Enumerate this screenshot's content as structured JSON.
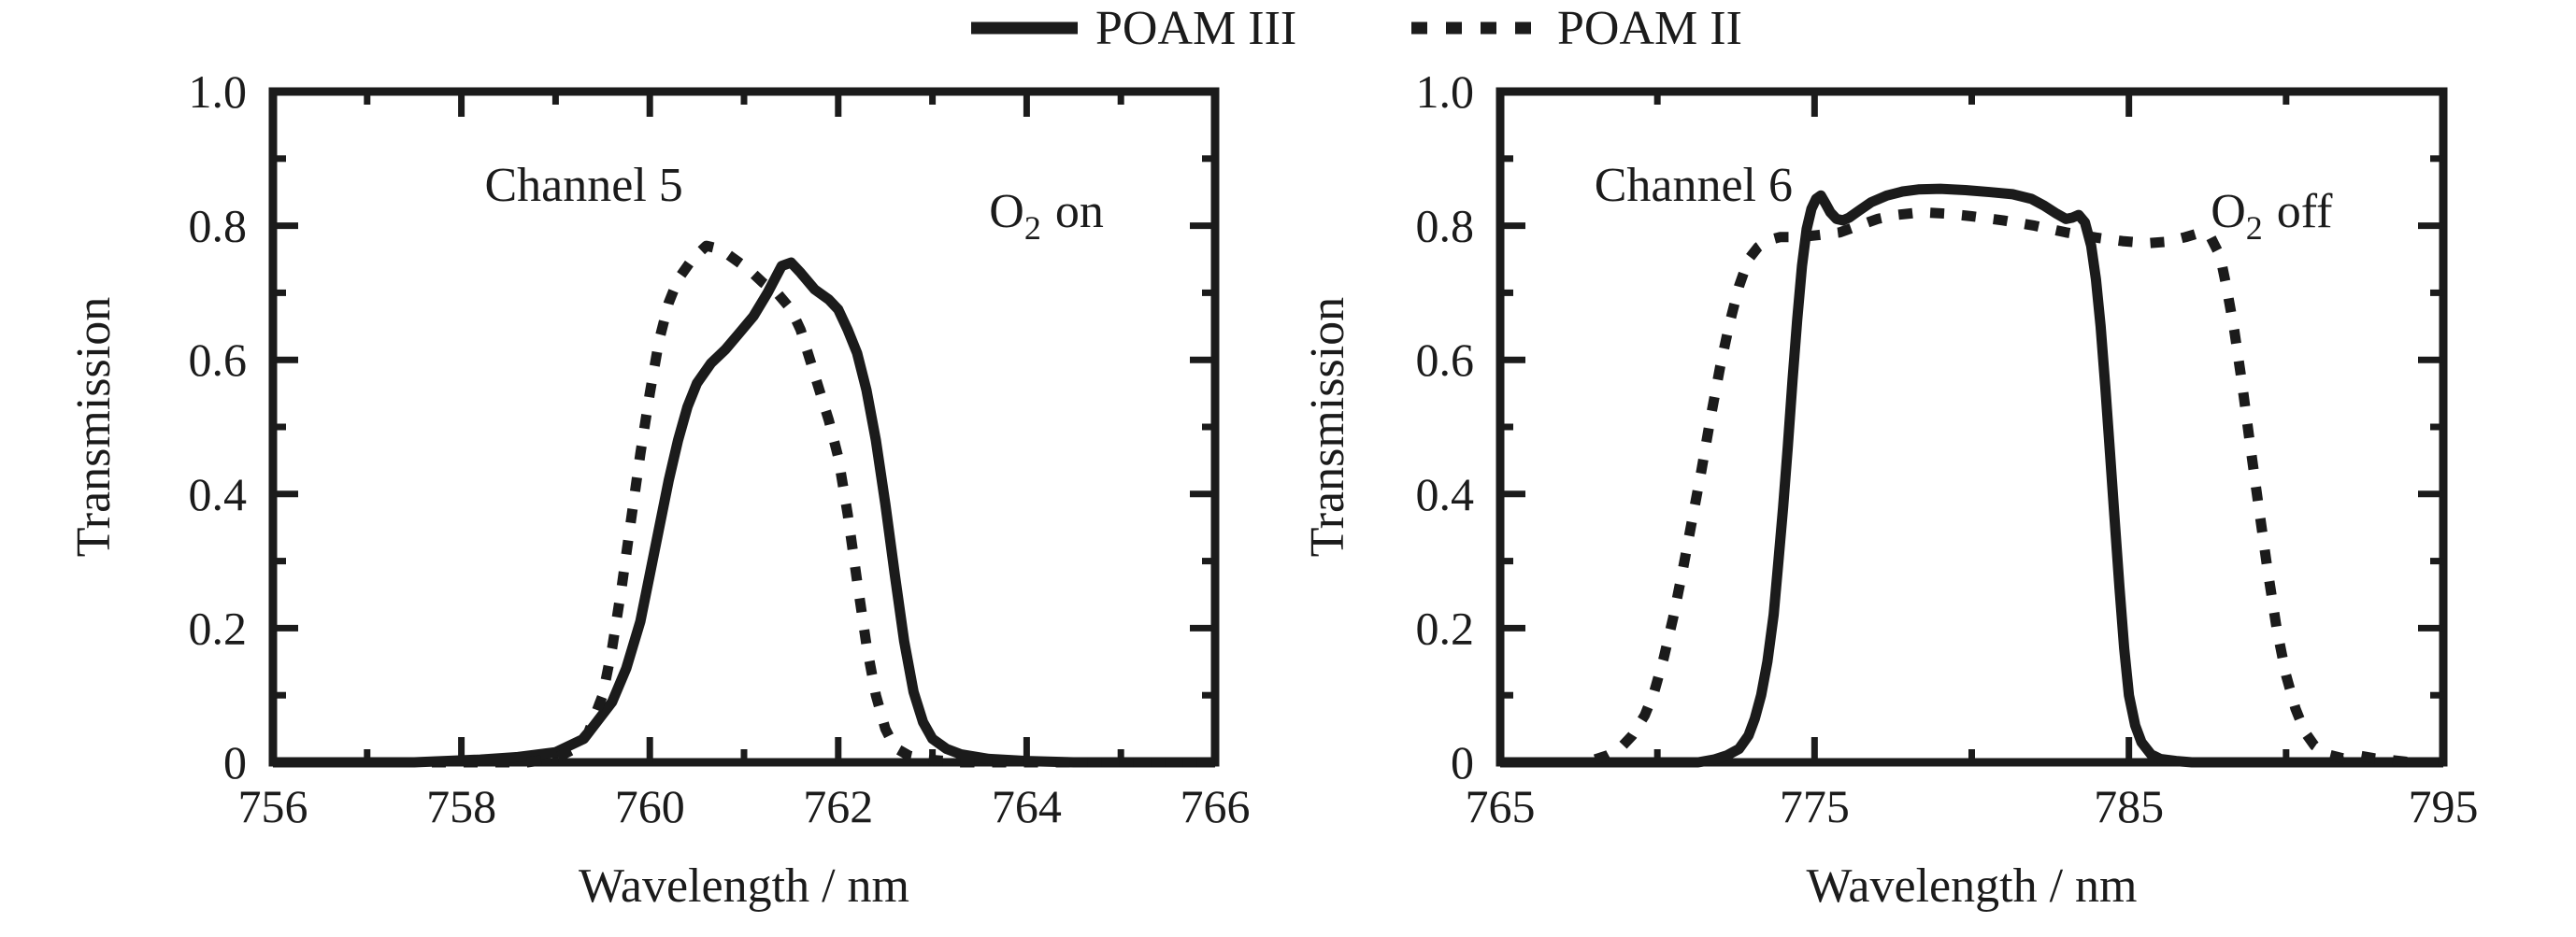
{
  "figure": {
    "background": "#ffffff",
    "line_color": "#1b1b1b"
  },
  "legend": {
    "items": [
      {
        "label": "POAM III",
        "line_style": "solid"
      },
      {
        "label": "POAM II",
        "line_style": "dashed"
      }
    ]
  },
  "chart_data": [
    {
      "type": "line",
      "title": "Channel 5",
      "annotation": {
        "prefix": "O",
        "sub": "2",
        "suffix": "on"
      },
      "xlabel": "Wavelength / nm",
      "ylabel": "Transmission",
      "xlim": [
        756,
        766
      ],
      "ylim": [
        0,
        1.0
      ],
      "grid": false,
      "xticks": {
        "major": [
          756,
          758,
          760,
          762,
          764,
          766
        ],
        "labels": [
          "756",
          "758",
          "760",
          "762",
          "764",
          "766"
        ],
        "minor_step": 1
      },
      "yticks": {
        "major": [
          0,
          0.2,
          0.4,
          0.6,
          0.8,
          1.0
        ],
        "labels": [
          "0",
          "0.2",
          "0.4",
          "0.6",
          "0.8",
          "1.0"
        ],
        "minor_step": 0.1
      },
      "series": [
        {
          "name": "POAM III",
          "style": "solid",
          "points": [
            [
              756,
              0
            ],
            [
              757.5,
              0
            ],
            [
              758.2,
              0.004
            ],
            [
              758.6,
              0.008
            ],
            [
              759.0,
              0.015
            ],
            [
              759.3,
              0.035
            ],
            [
              759.6,
              0.09
            ],
            [
              759.75,
              0.14
            ],
            [
              759.9,
              0.21
            ],
            [
              760.0,
              0.28
            ],
            [
              760.1,
              0.35
            ],
            [
              760.2,
              0.42
            ],
            [
              760.3,
              0.48
            ],
            [
              760.4,
              0.53
            ],
            [
              760.5,
              0.565
            ],
            [
              760.65,
              0.595
            ],
            [
              760.8,
              0.615
            ],
            [
              760.95,
              0.64
            ],
            [
              761.1,
              0.665
            ],
            [
              761.25,
              0.7
            ],
            [
              761.4,
              0.74
            ],
            [
              761.5,
              0.745
            ],
            [
              761.6,
              0.73
            ],
            [
              761.75,
              0.705
            ],
            [
              761.9,
              0.69
            ],
            [
              762.0,
              0.675
            ],
            [
              762.1,
              0.645
            ],
            [
              762.2,
              0.61
            ],
            [
              762.3,
              0.555
            ],
            [
              762.4,
              0.48
            ],
            [
              762.5,
              0.385
            ],
            [
              762.6,
              0.28
            ],
            [
              762.7,
              0.18
            ],
            [
              762.8,
              0.105
            ],
            [
              762.9,
              0.06
            ],
            [
              763.0,
              0.035
            ],
            [
              763.15,
              0.02
            ],
            [
              763.3,
              0.012
            ],
            [
              763.6,
              0.005
            ],
            [
              764.0,
              0.002
            ],
            [
              764.5,
              0
            ],
            [
              766,
              0
            ]
          ]
        },
        {
          "name": "POAM II",
          "style": "dashed",
          "points": [
            [
              756,
              0
            ],
            [
              758.7,
              0
            ],
            [
              759.0,
              0.006
            ],
            [
              759.2,
              0.02
            ],
            [
              759.35,
              0.045
            ],
            [
              759.5,
              0.1
            ],
            [
              759.6,
              0.17
            ],
            [
              759.7,
              0.26
            ],
            [
              759.8,
              0.36
            ],
            [
              759.9,
              0.46
            ],
            [
              760.0,
              0.55
            ],
            [
              760.1,
              0.63
            ],
            [
              760.2,
              0.685
            ],
            [
              760.3,
              0.72
            ],
            [
              760.45,
              0.75
            ],
            [
              760.6,
              0.77
            ],
            [
              760.75,
              0.765
            ],
            [
              760.9,
              0.75
            ],
            [
              761.05,
              0.735
            ],
            [
              761.2,
              0.715
            ],
            [
              761.35,
              0.7
            ],
            [
              761.5,
              0.675
            ],
            [
              761.6,
              0.645
            ],
            [
              761.7,
              0.6
            ],
            [
              761.8,
              0.555
            ],
            [
              761.9,
              0.51
            ],
            [
              762.0,
              0.455
            ],
            [
              762.1,
              0.37
            ],
            [
              762.2,
              0.27
            ],
            [
              762.3,
              0.175
            ],
            [
              762.4,
              0.1
            ],
            [
              762.5,
              0.05
            ],
            [
              762.6,
              0.022
            ],
            [
              762.75,
              0.01
            ],
            [
              762.95,
              0.004
            ],
            [
              763.3,
              0
            ],
            [
              766,
              0
            ]
          ]
        }
      ]
    },
    {
      "type": "line",
      "title": "Channel 6",
      "annotation": {
        "prefix": "O",
        "sub": "2",
        "suffix": "off"
      },
      "xlabel": "Wavelength / nm",
      "ylabel": "Transmission",
      "xlim": [
        765,
        795
      ],
      "ylim": [
        0,
        1.0
      ],
      "grid": false,
      "xticks": {
        "major": [
          765,
          775,
          785,
          795
        ],
        "labels": [
          "765",
          "775",
          "785",
          "795"
        ],
        "minor_step": 5
      },
      "yticks": {
        "major": [
          0,
          0.2,
          0.4,
          0.6,
          0.8,
          1.0
        ],
        "labels": [
          "0",
          "0.2",
          "0.4",
          "0.6",
          "0.8",
          "1.0"
        ],
        "minor_step": 0.1
      },
      "series": [
        {
          "name": "POAM III",
          "style": "solid",
          "points": [
            [
              765,
              0
            ],
            [
              771.3,
              0
            ],
            [
              771.8,
              0.004
            ],
            [
              772.2,
              0.01
            ],
            [
              772.6,
              0.02
            ],
            [
              772.9,
              0.04
            ],
            [
              773.1,
              0.065
            ],
            [
              773.3,
              0.1
            ],
            [
              773.5,
              0.15
            ],
            [
              773.7,
              0.22
            ],
            [
              773.85,
              0.3
            ],
            [
              774.0,
              0.38
            ],
            [
              774.15,
              0.47
            ],
            [
              774.3,
              0.57
            ],
            [
              774.45,
              0.66
            ],
            [
              774.6,
              0.74
            ],
            [
              774.75,
              0.795
            ],
            [
              774.9,
              0.825
            ],
            [
              775.05,
              0.84
            ],
            [
              775.2,
              0.845
            ],
            [
              775.35,
              0.833
            ],
            [
              775.5,
              0.82
            ],
            [
              775.7,
              0.81
            ],
            [
              775.9,
              0.808
            ],
            [
              776.1,
              0.812
            ],
            [
              776.4,
              0.822
            ],
            [
              776.8,
              0.835
            ],
            [
              777.3,
              0.845
            ],
            [
              777.8,
              0.851
            ],
            [
              778.3,
              0.854
            ],
            [
              779.0,
              0.855
            ],
            [
              779.8,
              0.853
            ],
            [
              780.6,
              0.85
            ],
            [
              781.3,
              0.847
            ],
            [
              781.9,
              0.84
            ],
            [
              782.3,
              0.83
            ],
            [
              782.7,
              0.818
            ],
            [
              783.0,
              0.81
            ],
            [
              783.2,
              0.812
            ],
            [
              783.4,
              0.816
            ],
            [
              783.6,
              0.805
            ],
            [
              783.8,
              0.77
            ],
            [
              783.95,
              0.72
            ],
            [
              784.1,
              0.65
            ],
            [
              784.25,
              0.56
            ],
            [
              784.4,
              0.46
            ],
            [
              784.55,
              0.36
            ],
            [
              784.7,
              0.26
            ],
            [
              784.85,
              0.17
            ],
            [
              785.0,
              0.1
            ],
            [
              785.2,
              0.055
            ],
            [
              785.4,
              0.03
            ],
            [
              785.7,
              0.012
            ],
            [
              786.0,
              0.005
            ],
            [
              786.5,
              0.002
            ],
            [
              787.0,
              0
            ],
            [
              795,
              0
            ]
          ]
        },
        {
          "name": "POAM II",
          "style": "dashed",
          "points": [
            [
              765,
              0
            ],
            [
              767.6,
              0
            ],
            [
              768.0,
              0.004
            ],
            [
              768.4,
              0.01
            ],
            [
              768.8,
              0.02
            ],
            [
              769.2,
              0.04
            ],
            [
              769.6,
              0.07
            ],
            [
              769.9,
              0.105
            ],
            [
              770.2,
              0.155
            ],
            [
              770.5,
              0.215
            ],
            [
              770.8,
              0.285
            ],
            [
              771.1,
              0.36
            ],
            [
              771.4,
              0.435
            ],
            [
              771.7,
              0.515
            ],
            [
              772.0,
              0.59
            ],
            [
              772.3,
              0.655
            ],
            [
              772.6,
              0.71
            ],
            [
              772.9,
              0.75
            ],
            [
              773.2,
              0.768
            ],
            [
              773.5,
              0.778
            ],
            [
              773.9,
              0.783
            ],
            [
              774.5,
              0.783
            ],
            [
              775.1,
              0.786
            ],
            [
              775.8,
              0.79
            ],
            [
              776.4,
              0.8
            ],
            [
              777.0,
              0.81
            ],
            [
              777.6,
              0.816
            ],
            [
              778.4,
              0.82
            ],
            [
              779.2,
              0.818
            ],
            [
              780.0,
              0.814
            ],
            [
              781.0,
              0.808
            ],
            [
              782.0,
              0.8
            ],
            [
              783.0,
              0.79
            ],
            [
              784.0,
              0.782
            ],
            [
              784.8,
              0.777
            ],
            [
              785.6,
              0.774
            ],
            [
              786.2,
              0.776
            ],
            [
              786.8,
              0.783
            ],
            [
              787.3,
              0.79
            ],
            [
              787.6,
              0.783
            ],
            [
              787.9,
              0.755
            ],
            [
              788.1,
              0.71
            ],
            [
              788.35,
              0.645
            ],
            [
              788.6,
              0.565
            ],
            [
              788.85,
              0.475
            ],
            [
              789.1,
              0.39
            ],
            [
              789.4,
              0.29
            ],
            [
              789.7,
              0.2
            ],
            [
              790.0,
              0.13
            ],
            [
              790.3,
              0.08
            ],
            [
              790.6,
              0.045
            ],
            [
              790.9,
              0.025
            ],
            [
              791.3,
              0.012
            ],
            [
              791.8,
              0.006
            ],
            [
              792.3,
              0.01
            ],
            [
              792.8,
              0.006
            ],
            [
              793.4,
              0.003
            ],
            [
              794.0,
              0
            ],
            [
              795,
              0
            ]
          ]
        }
      ]
    }
  ]
}
